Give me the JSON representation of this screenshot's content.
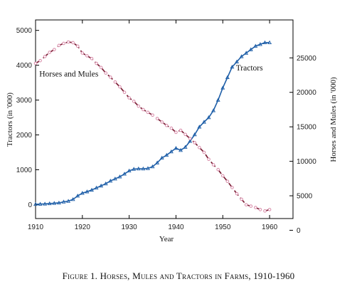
{
  "caption": "Figure 1. Horses, Mules and Tractors in Farms, 1910-1960",
  "colors": {
    "tractors": "#1f5fa8",
    "horses": "#7a1f35",
    "horse_markers": "#d88aa8",
    "axis": "#000000"
  },
  "chart_data": {
    "type": "line",
    "title": "",
    "xlabel": "Year",
    "ylabel": "Tractors (in '000)",
    "y2label": "Horses and Mules (in '000)",
    "xlim": [
      1910,
      1965
    ],
    "ylim": [
      -400,
      5300
    ],
    "y2lim": [
      1700,
      30500
    ],
    "x_ticks": [
      "1910",
      "1920",
      "1930",
      "1940",
      "1950",
      "1960"
    ],
    "y_ticks": [
      "0",
      "1000",
      "2000",
      "3000",
      "4000",
      "5000"
    ],
    "y2_ticks": [
      "0",
      "5000",
      "10000",
      "15000",
      "20000",
      "25000"
    ],
    "grid": false,
    "annotations": [
      {
        "text": "Horses and Mules",
        "series": "Horses and Mules",
        "x": 1910.8,
        "y2": 22300
      },
      {
        "text": "Tractors",
        "series": "Tractors",
        "x": 1952.8,
        "y": 3850
      }
    ],
    "series": [
      {
        "name": "Tractors",
        "axis": "left",
        "marker": "triangle",
        "line": "solid",
        "x": [
          1910,
          1911,
          1912,
          1913,
          1914,
          1915,
          1916,
          1917,
          1918,
          1919,
          1920,
          1921,
          1922,
          1923,
          1924,
          1925,
          1926,
          1927,
          1928,
          1929,
          1930,
          1931,
          1932,
          1933,
          1934,
          1935,
          1936,
          1937,
          1938,
          1939,
          1940,
          1941,
          1942,
          1943,
          1944,
          1945,
          1946,
          1947,
          1948,
          1949,
          1950,
          1951,
          1952,
          1953,
          1954,
          1955,
          1956,
          1957,
          1958,
          1959,
          1960
        ],
        "values": [
          10,
          15,
          20,
          30,
          40,
          50,
          80,
          100,
          150,
          250,
          330,
          370,
          420,
          480,
          540,
          600,
          680,
          740,
          800,
          880,
          970,
          1020,
          1030,
          1030,
          1040,
          1090,
          1200,
          1340,
          1420,
          1520,
          1620,
          1560,
          1650,
          1820,
          2010,
          2230,
          2370,
          2500,
          2700,
          3000,
          3350,
          3650,
          3950,
          4100,
          4250,
          4350,
          4450,
          4550,
          4600,
          4650,
          4650
        ]
      },
      {
        "name": "Horses and Mules",
        "axis": "right",
        "marker": "circle",
        "line": "dashed",
        "x": [
          1910,
          1911,
          1912,
          1913,
          1914,
          1915,
          1916,
          1917,
          1918,
          1919,
          1920,
          1921,
          1922,
          1923,
          1924,
          1925,
          1926,
          1927,
          1928,
          1929,
          1930,
          1931,
          1932,
          1933,
          1934,
          1935,
          1936,
          1937,
          1938,
          1939,
          1940,
          1941,
          1942,
          1943,
          1944,
          1945,
          1946,
          1947,
          1948,
          1949,
          1950,
          1951,
          1952,
          1953,
          1954,
          1955,
          1956,
          1957,
          1958,
          1959,
          1960
        ],
        "values": [
          24200,
          24600,
          25200,
          25800,
          26200,
          26800,
          27100,
          27300,
          27200,
          26700,
          25700,
          25300,
          24900,
          24200,
          23600,
          22800,
          22200,
          21500,
          20800,
          20000,
          19200,
          18700,
          18000,
          17500,
          17100,
          16700,
          16200,
          15700,
          15200,
          14800,
          14200,
          14500,
          13900,
          13300,
          12700,
          12000,
          11300,
          10300,
          9500,
          8800,
          7900,
          7100,
          6200,
          5300,
          4500,
          3700,
          3500,
          3300,
          3000,
          2800,
          3000
        ]
      }
    ]
  }
}
